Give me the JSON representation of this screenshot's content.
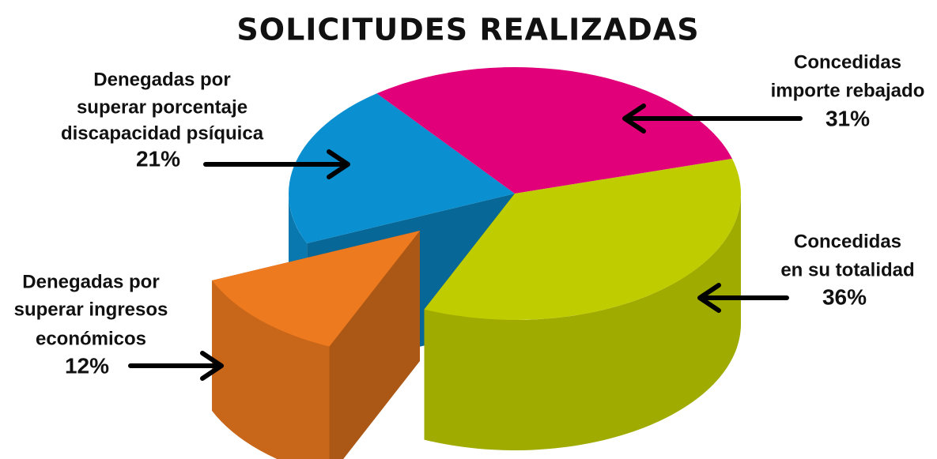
{
  "chart_data": {
    "type": "pie3d",
    "title": "SOLICITUDES REALIZADAS",
    "categories": [
      [
        "Denegadas por",
        "superar porcentaje",
        "discapacidad psíquica"
      ],
      [
        "Concedidas",
        "importe rebajado"
      ],
      [
        "Concedidas",
        "en su totalidad"
      ],
      [
        "Denegadas por",
        "superar ingresos",
        "económicos"
      ]
    ],
    "values": [
      21,
      31,
      36,
      12
    ],
    "value_labels": [
      "21%",
      "31%",
      "36%",
      "12%"
    ],
    "colors": [
      "#0a8fd0",
      "#e2007a",
      "#bfcc00",
      "#ee7a1f"
    ]
  }
}
